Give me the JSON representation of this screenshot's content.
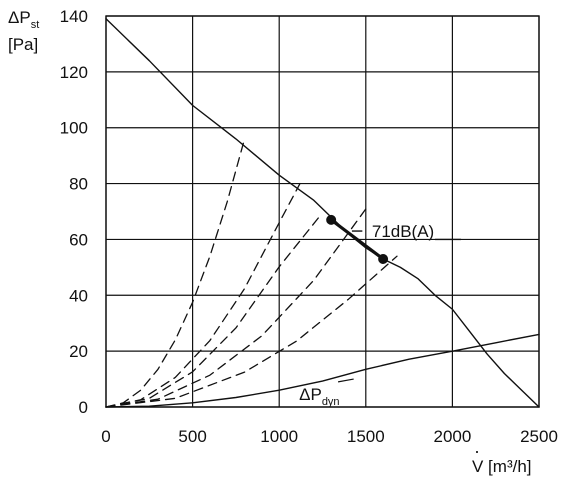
{
  "chart_data": {
    "type": "line",
    "ylabel": {
      "line1_main": "ΔP",
      "line1_sub": "st",
      "line2": "[Pa]"
    },
    "xlabel": {
      "dot": "·",
      "text": "V [m³/h]"
    },
    "xlim": [
      0,
      2500
    ],
    "ylim": [
      0,
      140
    ],
    "xticks": [
      0,
      500,
      1000,
      1500,
      2000,
      2500
    ],
    "yticks": [
      0,
      20,
      40,
      60,
      80,
      100,
      120,
      140
    ],
    "grid": true,
    "colors": {
      "line": "#111111",
      "grid": "#111111"
    },
    "series": [
      {
        "id": "fan-curve",
        "style": "solid",
        "points": [
          [
            0,
            139
          ],
          [
            250,
            124
          ],
          [
            500,
            108
          ],
          [
            750,
            96
          ],
          [
            1000,
            83
          ],
          [
            1200,
            74
          ],
          [
            1300,
            68
          ],
          [
            1400,
            62
          ],
          [
            1500,
            57
          ],
          [
            1600,
            53
          ],
          [
            1700,
            50
          ],
          [
            1800,
            46
          ],
          [
            1900,
            40
          ],
          [
            2000,
            35
          ],
          [
            2100,
            27
          ],
          [
            2200,
            19
          ],
          [
            2300,
            12
          ],
          [
            2400,
            6
          ],
          [
            2500,
            0
          ]
        ]
      },
      {
        "id": "operating-segment",
        "style": "solid-thick",
        "points": [
          [
            1300,
            67
          ],
          [
            1600,
            53
          ]
        ]
      },
      {
        "id": "system-curve-1",
        "style": "dashed",
        "points": [
          [
            0,
            0
          ],
          [
            100,
            1.5
          ],
          [
            200,
            6
          ],
          [
            300,
            13.5
          ],
          [
            400,
            24
          ],
          [
            500,
            37.5
          ],
          [
            600,
            54
          ],
          [
            700,
            73.5
          ],
          [
            800,
            96
          ]
        ]
      },
      {
        "id": "system-curve-2",
        "style": "dashed",
        "points": [
          [
            0,
            0
          ],
          [
            200,
            2.6
          ],
          [
            400,
            10.6
          ],
          [
            600,
            23.8
          ],
          [
            800,
            42.4
          ],
          [
            1000,
            66
          ],
          [
            1120,
            80
          ]
        ]
      },
      {
        "id": "system-curve-3",
        "style": "dashed",
        "points": [
          [
            0,
            0
          ],
          [
            250,
            3.1
          ],
          [
            500,
            12.6
          ],
          [
            750,
            28.3
          ],
          [
            1000,
            50.2
          ],
          [
            1230,
            68
          ]
        ]
      },
      {
        "id": "system-curve-4",
        "style": "dashed",
        "points": [
          [
            0,
            0
          ],
          [
            300,
            2.8
          ],
          [
            600,
            11.4
          ],
          [
            900,
            25.5
          ],
          [
            1200,
            45.4
          ],
          [
            1500,
            70.9
          ]
        ]
      },
      {
        "id": "system-curve-4-upper",
        "style": "dashed",
        "points": [
          [
            0,
            0
          ],
          [
            400,
            3.1
          ],
          [
            800,
            12.5
          ],
          [
            1100,
            23.6
          ],
          [
            1400,
            38.6
          ],
          [
            1680,
            54
          ]
        ]
      },
      {
        "id": "dynamic-pressure",
        "style": "solid",
        "points": [
          [
            0,
            0
          ],
          [
            250,
            0.3
          ],
          [
            500,
            1.5
          ],
          [
            750,
            3.4
          ],
          [
            1000,
            6
          ],
          [
            1250,
            9.3
          ],
          [
            1500,
            13.5
          ],
          [
            1750,
            17.1
          ],
          [
            2000,
            20
          ],
          [
            2250,
            23
          ],
          [
            2500,
            26
          ]
        ]
      }
    ],
    "markers": [
      {
        "id": "operating-point-upper",
        "x": 1300,
        "y": 67
      },
      {
        "id": "operating-point-lower",
        "x": 1600,
        "y": 53
      }
    ],
    "annotations": {
      "noise": {
        "text": "71dB(A)",
        "x": 1535,
        "y": 63,
        "leader": [
          [
            1420,
            63
          ],
          [
            1480,
            63
          ]
        ],
        "leader_right": [
          [
            1900,
            60
          ],
          [
            2050,
            60
          ]
        ]
      },
      "dynamic": {
        "main": "ΔP",
        "sub": "dyn",
        "x": 1115,
        "y": 5,
        "leader": [
          [
            1340,
            9
          ],
          [
            1430,
            10
          ]
        ]
      }
    }
  }
}
